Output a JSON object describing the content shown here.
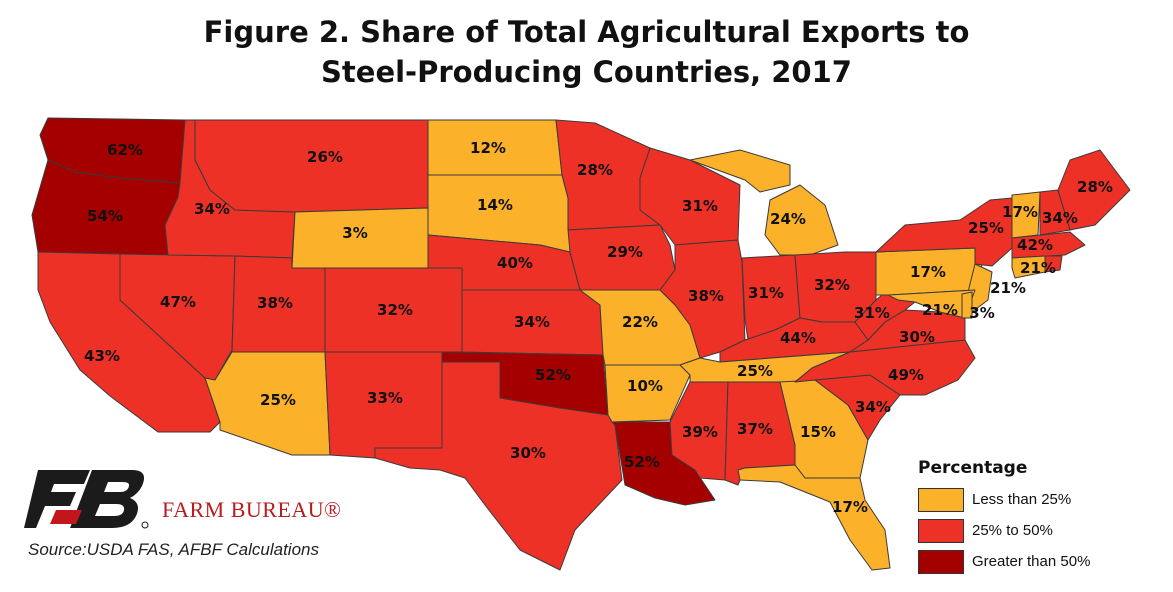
{
  "title_line1": "Figure 2. Share of Total Agricultural Exports to",
  "title_line2": "Steel-Producing Countries, 2017",
  "colors": {
    "low": "#fbb12a",
    "mid": "#ee3127",
    "high": "#a40000"
  },
  "legend": {
    "title": "Percentage",
    "items": [
      {
        "label": "Less than 25%",
        "class": "low"
      },
      {
        "label": "25% to 50%",
        "class": "mid"
      },
      {
        "label": "Greater than 50%",
        "class": "high"
      }
    ]
  },
  "brand": "FARM BUREAU®",
  "source": "Source:USDA FAS, AFBF Calculations",
  "states": {
    "WA": {
      "value": "62%",
      "class": "high"
    },
    "OR": {
      "value": "54%",
      "class": "high"
    },
    "CA": {
      "value": "43%",
      "class": "mid"
    },
    "NV": {
      "value": "47%",
      "class": "mid"
    },
    "ID": {
      "value": "34%",
      "class": "mid"
    },
    "MT": {
      "value": "26%",
      "class": "mid"
    },
    "WY": {
      "value": "3%",
      "class": "low"
    },
    "UT": {
      "value": "38%",
      "class": "mid"
    },
    "AZ": {
      "value": "25%",
      "class": "low"
    },
    "CO": {
      "value": "32%",
      "class": "mid"
    },
    "NM": {
      "value": "33%",
      "class": "mid"
    },
    "ND": {
      "value": "12%",
      "class": "low"
    },
    "SD": {
      "value": "14%",
      "class": "low"
    },
    "NE": {
      "value": "40%",
      "class": "mid"
    },
    "KS": {
      "value": "34%",
      "class": "mid"
    },
    "OK": {
      "value": "52%",
      "class": "high"
    },
    "TX": {
      "value": "30%",
      "class": "mid"
    },
    "MN": {
      "value": "28%",
      "class": "mid"
    },
    "IA": {
      "value": "29%",
      "class": "mid"
    },
    "MO": {
      "value": "22%",
      "class": "low"
    },
    "AR": {
      "value": "10%",
      "class": "low"
    },
    "LA": {
      "value": "52%",
      "class": "high"
    },
    "WI": {
      "value": "31%",
      "class": "mid"
    },
    "IL": {
      "value": "38%",
      "class": "mid"
    },
    "MI": {
      "value": "24%",
      "class": "low"
    },
    "IN": {
      "value": "31%",
      "class": "mid"
    },
    "OH": {
      "value": "32%",
      "class": "mid"
    },
    "KY": {
      "value": "44%",
      "class": "mid"
    },
    "TN": {
      "value": "25%",
      "class": "low"
    },
    "MS": {
      "value": "39%",
      "class": "mid"
    },
    "AL": {
      "value": "37%",
      "class": "mid"
    },
    "GA": {
      "value": "15%",
      "class": "low"
    },
    "FL": {
      "value": "17%",
      "class": "low"
    },
    "SC": {
      "value": "34%",
      "class": "mid"
    },
    "NC": {
      "value": "49%",
      "class": "mid"
    },
    "VA": {
      "value": "30%",
      "class": "mid"
    },
    "WV": {
      "value": "31%",
      "class": "mid"
    },
    "PA": {
      "value": "17%",
      "class": "low"
    },
    "NY": {
      "value": "25%",
      "class": "mid"
    },
    "VT": {
      "value": "17%",
      "class": "low"
    },
    "NH": {
      "value": "34%",
      "class": "mid"
    },
    "ME": {
      "value": "28%",
      "class": "mid"
    },
    "MA": {
      "value": "42%",
      "class": "mid"
    },
    "CT": {
      "value": "21%",
      "class": "low"
    },
    "NJ": {
      "value": "21%",
      "class": "low"
    },
    "MD": {
      "value": "21%",
      "class": "low"
    },
    "DE": {
      "value": "3%",
      "class": "low"
    }
  }
}
